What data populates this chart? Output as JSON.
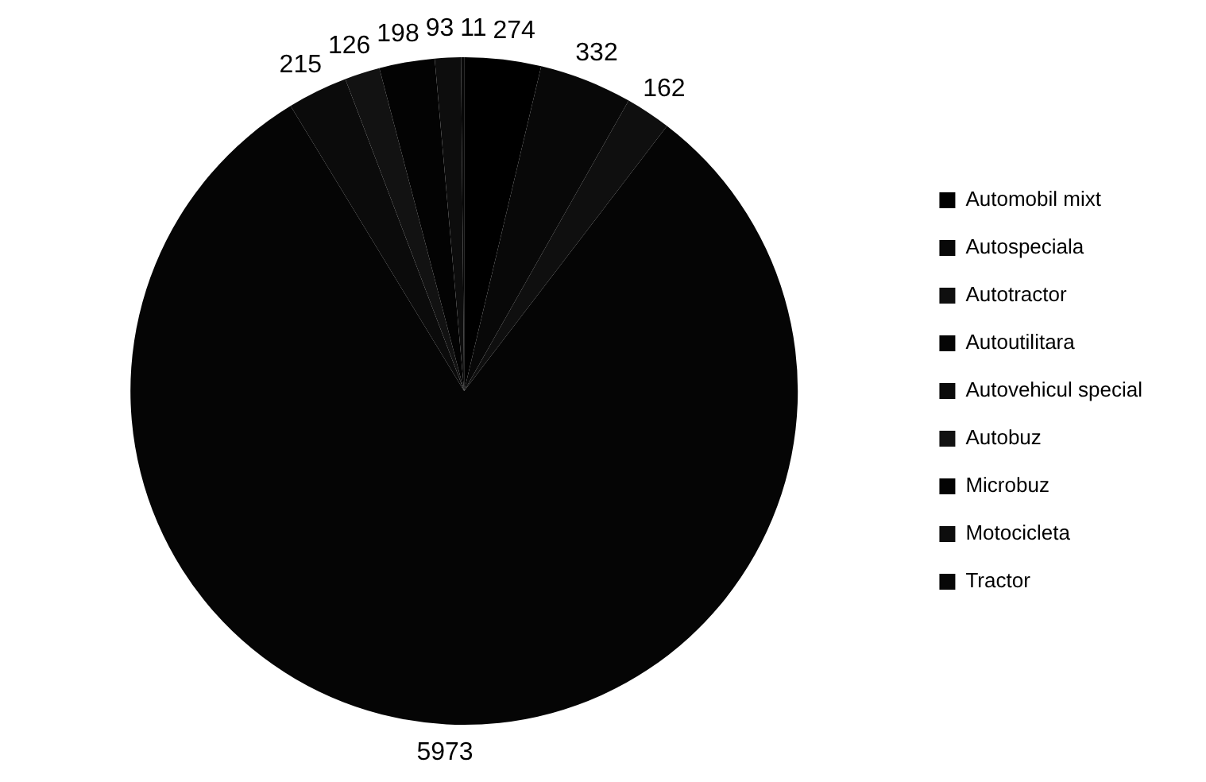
{
  "chart_data": {
    "type": "pie",
    "categories": [
      "Automobil mixt",
      "Autospeciala",
      "Autotractor",
      "Autoutilitara",
      "Autovehicul special",
      "Autobuz",
      "Microbuz",
      "Motocicleta",
      "Tractor"
    ],
    "values": [
      274,
      332,
      162,
      5973,
      215,
      126,
      198,
      93,
      11
    ],
    "colors": [
      "#000000",
      "#080808",
      "#0f0f0f",
      "#050505",
      "#0b0b0b",
      "#121212",
      "#030303",
      "#0d0d0d",
      "#070707"
    ],
    "data_labels": true,
    "legend": "right"
  }
}
